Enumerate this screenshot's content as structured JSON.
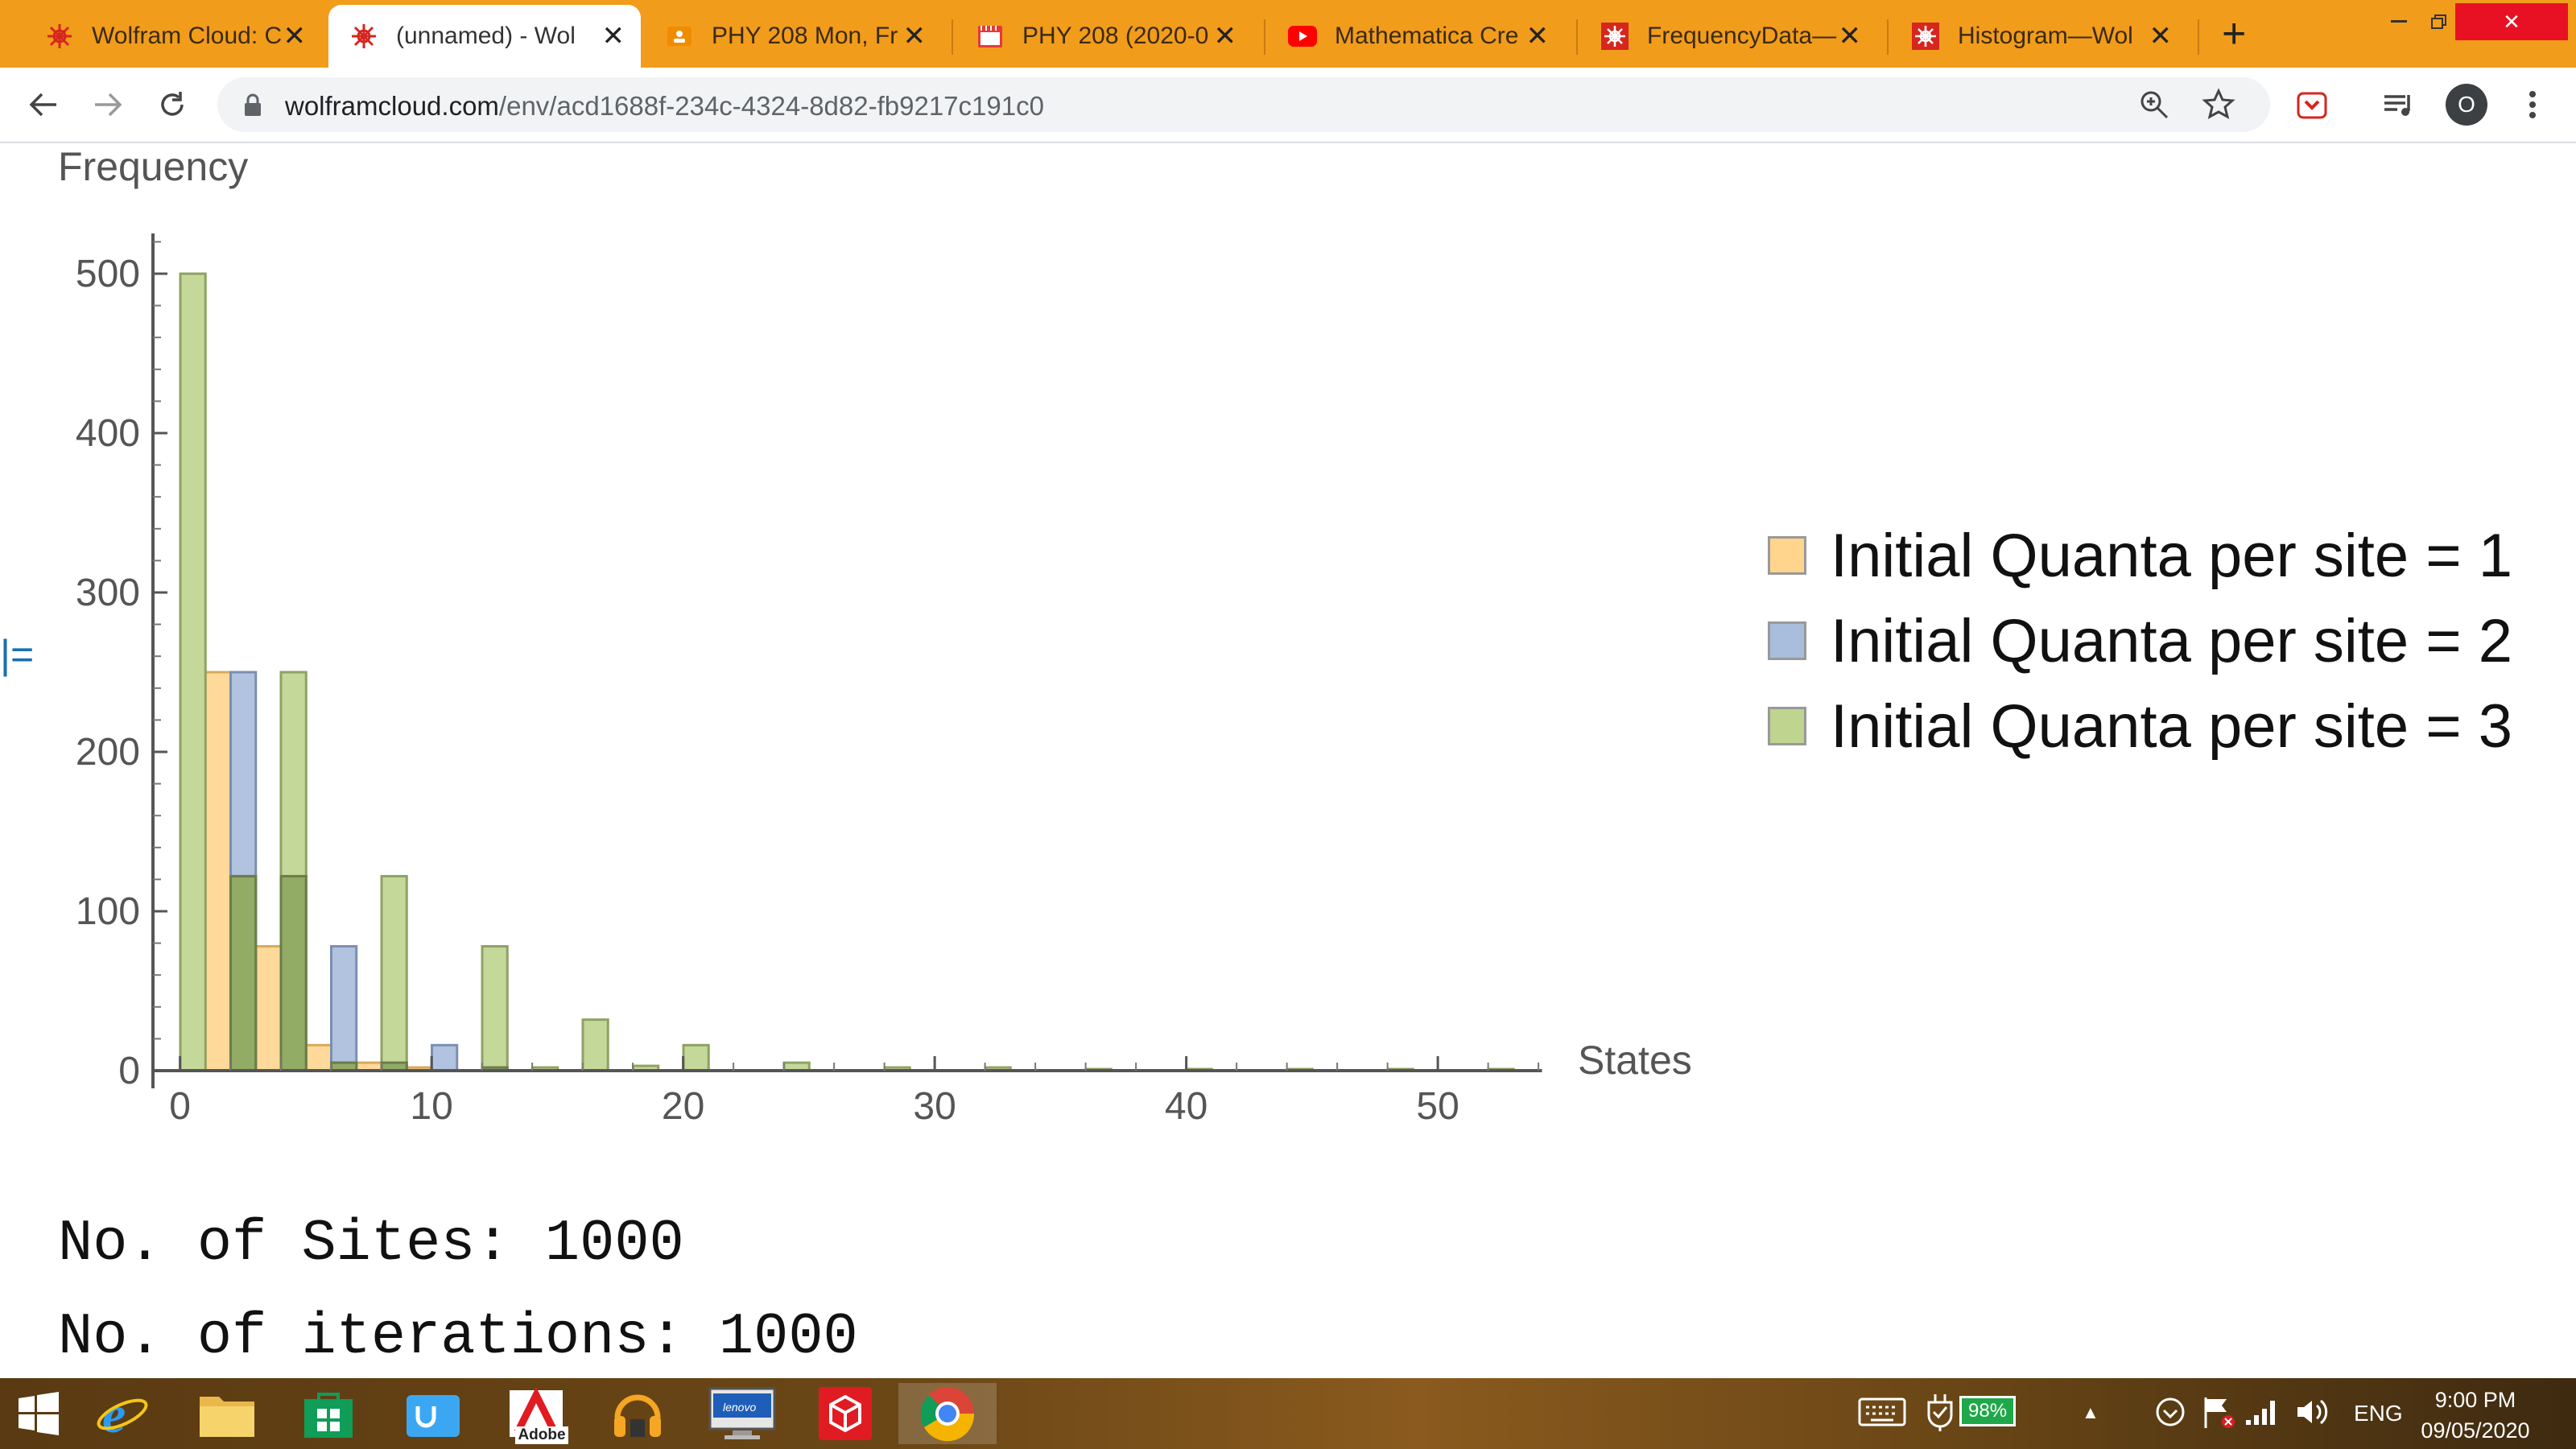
{
  "browser": {
    "tabs": [
      {
        "title": "Wolfram Cloud: C",
        "icon": "wolfram-icon",
        "active": false
      },
      {
        "title": "(unnamed) - Wol",
        "icon": "wolfram-icon",
        "active": true
      },
      {
        "title": "PHY 208 Mon, Fr",
        "icon": "classroom-icon",
        "active": false
      },
      {
        "title": "PHY 208 (2020-0",
        "icon": "calendar-icon",
        "active": false
      },
      {
        "title": "Mathematica Cre",
        "icon": "youtube-icon",
        "active": false
      },
      {
        "title": "FrequencyData—",
        "icon": "wolfram-icon",
        "active": false
      },
      {
        "title": "Histogram—Wol",
        "icon": "wolfram-icon",
        "active": false
      }
    ],
    "new_tab_label": "+",
    "url_host": "wolframcloud.com",
    "url_path": "/env/acd1688f-234c-4324-8d82-fb9217c191c0",
    "profile_initial": "O",
    "colors": {
      "tabstrip": "#f29c1b",
      "close": "#e81123"
    }
  },
  "notebook": {
    "cell_bracket": "|=",
    "info_lines": [
      "No. of Sites: 1000",
      "No. of iterations: 1000"
    ]
  },
  "chart_data": {
    "type": "bar",
    "ylabel": "Frequency",
    "xlabel": "States",
    "xlim": [
      0,
      54
    ],
    "ylim": [
      0,
      500
    ],
    "x_ticks": [
      "0",
      "10",
      "20",
      "30",
      "40",
      "50"
    ],
    "y_ticks": [
      "0",
      "100",
      "200",
      "300",
      "400",
      "500"
    ],
    "bin_width": 1,
    "legend_position": "right",
    "series": [
      {
        "name": "Initial Quanta per site = 1",
        "color": "#ffd58e",
        "edge": "#d9a95a",
        "bins": [
          [
            1,
            250
          ],
          [
            3,
            78
          ],
          [
            5,
            16
          ],
          [
            7,
            5
          ],
          [
            9,
            2
          ]
        ]
      },
      {
        "name": "Initial Quanta per site = 2",
        "color": "#a9bddc",
        "edge": "#7a8fb2",
        "bins": [
          [
            2,
            250
          ],
          [
            4,
            122
          ],
          [
            6,
            78
          ],
          [
            8,
            5
          ],
          [
            10,
            16
          ],
          [
            12,
            2
          ]
        ]
      },
      {
        "name": "Initial Quanta per site = 3",
        "color": "#bed48f",
        "edge": "#8fa263",
        "bins": [
          [
            0,
            500
          ],
          [
            2,
            122
          ],
          [
            4,
            250
          ],
          [
            6,
            5
          ],
          [
            8,
            122
          ],
          [
            12,
            78
          ],
          [
            14,
            2
          ],
          [
            16,
            32
          ],
          [
            18,
            3
          ],
          [
            20,
            16
          ],
          [
            24,
            5
          ],
          [
            28,
            2
          ],
          [
            32,
            2
          ],
          [
            36,
            1
          ],
          [
            40,
            1
          ],
          [
            44,
            1
          ],
          [
            48,
            1
          ],
          [
            52,
            1
          ]
        ]
      }
    ],
    "overlap_color": "#6f8a3c"
  },
  "taskbar": {
    "apps": [
      "start-icon",
      "ie-icon",
      "file-explorer-icon",
      "store-icon",
      "mail-icon",
      "adobe-icon",
      "audio-app-icon",
      "lenovo-icon",
      "3d-app-icon",
      "chrome-icon"
    ],
    "adobe_label": "Adobe",
    "lenovo_label": "lenovo",
    "battery": "98%",
    "language": "ENG",
    "time": "9:00 PM",
    "date": "09/05/2020"
  }
}
